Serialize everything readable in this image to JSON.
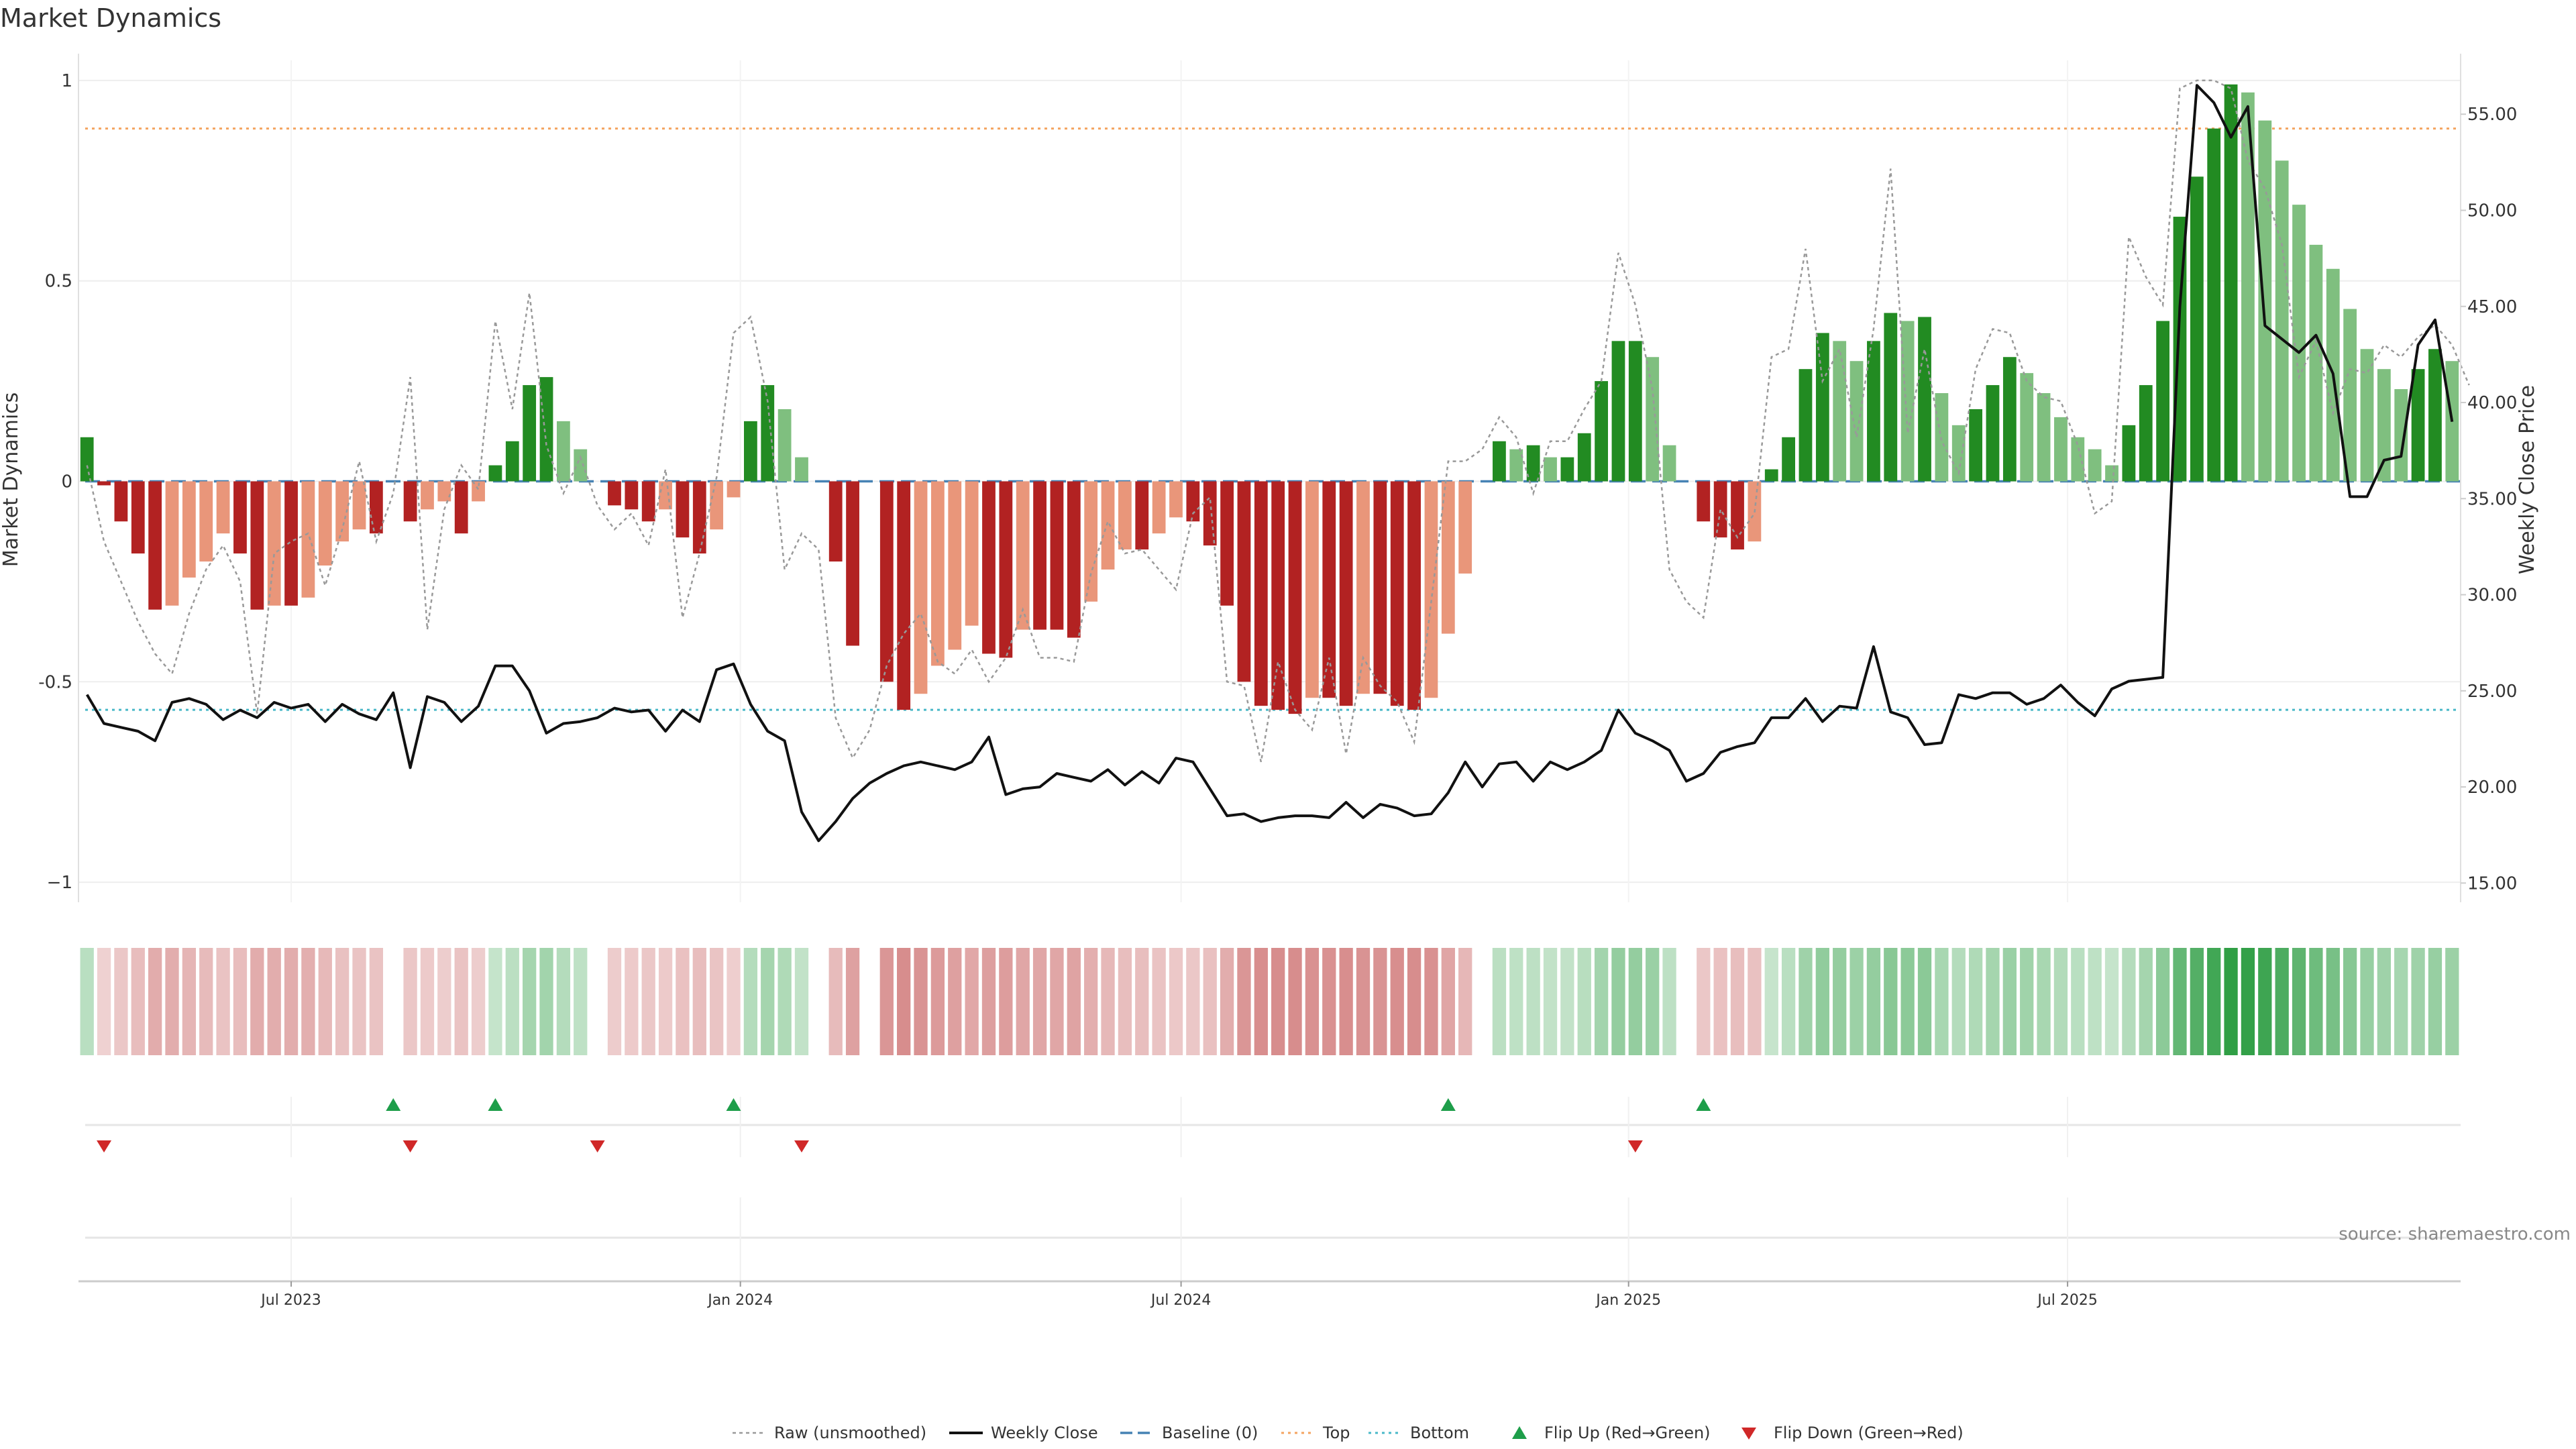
{
  "title": "Market Dynamics",
  "source_note": "source: sharemaestro.com",
  "colors": {
    "strong_green": "#228B22",
    "light_green": "#7FBF7F",
    "strong_red": "#B22222",
    "light_red": "#E9967A",
    "baseline": "#4682B4",
    "top": "#F4A460",
    "bottom": "#48B8C8",
    "raw": "#999999",
    "close": "#111111",
    "flip_up": "#1E9E4A",
    "flip_down": "#D02828"
  },
  "chart_data": {
    "type": "bar+line",
    "title": "Market Dynamics",
    "ylabel_left": "Market Dynamics",
    "ylabel_right": "Weekly Close Price",
    "ylim_left": [
      -1.05,
      1.05
    ],
    "ylim_right": [
      14,
      57.8
    ],
    "left_ticks": [
      "1",
      "0.5",
      "0",
      "-0.5",
      "−1"
    ],
    "left_tick_values": [
      1,
      0.5,
      0,
      -0.5,
      -1
    ],
    "right_ticks": [
      "55.00",
      "50.00",
      "45.00",
      "40.00",
      "35.00",
      "30.00",
      "25.00",
      "20.00",
      "15.00"
    ],
    "right_tick_values": [
      55,
      50,
      45,
      40,
      35,
      30,
      25,
      20,
      15
    ],
    "x_ticks": [
      "Jul 2023",
      "Jan 2024",
      "Jul 2024",
      "Jan 2025",
      "Jul 2025"
    ],
    "x_tick_weeks": [
      12,
      38.4,
      64.3,
      90.6,
      116.4
    ],
    "top_level": 0.88,
    "bottom_level": -0.57,
    "baseline_level": 0,
    "series": [
      {
        "name": "Market Dynamics (smoothed)",
        "values": [
          0.11,
          -0.01,
          -0.1,
          -0.18,
          -0.32,
          -0.31,
          -0.24,
          -0.2,
          -0.13,
          -0.18,
          -0.32,
          -0.31,
          -0.31,
          -0.29,
          -0.21,
          -0.15,
          -0.12,
          -0.13,
          0,
          -0.1,
          -0.07,
          -0.05,
          -0.13,
          -0.05,
          0.04,
          0.1,
          0.24,
          0.26,
          0.15,
          0.08,
          0,
          -0.06,
          -0.07,
          -0.1,
          -0.07,
          -0.14,
          -0.18,
          -0.12,
          -0.04,
          0.15,
          0.24,
          0.18,
          0.06,
          0,
          -0.2,
          -0.41,
          0,
          -0.5,
          -0.57,
          -0.53,
          -0.46,
          -0.42,
          -0.36,
          -0.43,
          -0.44,
          -0.37,
          -0.37,
          -0.37,
          -0.39,
          -0.3,
          -0.22,
          -0.17,
          -0.17,
          -0.13,
          -0.09,
          -0.1,
          -0.16,
          -0.31,
          -0.5,
          -0.56,
          -0.57,
          -0.58,
          -0.54,
          -0.54,
          -0.56,
          -0.53,
          -0.53,
          -0.56,
          -0.57,
          -0.54,
          -0.38,
          -0.23,
          0,
          0.1,
          0.08,
          0.09,
          0.06,
          0.06,
          0.12,
          0.25,
          0.35,
          0.35,
          0.31,
          0.09,
          0,
          -0.1,
          -0.14,
          -0.17,
          -0.15,
          0.03,
          0.11,
          0.28,
          0.37,
          0.35,
          0.3,
          0.35,
          0.42,
          0.4,
          0.41,
          0.22,
          0.14,
          0.18,
          0.24,
          0.31,
          0.27,
          0.22,
          0.16,
          0.11,
          0.08,
          0.04,
          0.14,
          0.24,
          0.4,
          0.66,
          0.76,
          0.88,
          0.99,
          0.97,
          0.9,
          0.8,
          0.69,
          0.59,
          0.53,
          0.43,
          0.33,
          0.28,
          0.23,
          0.28,
          0.33,
          0.3
        ]
      },
      {
        "name": "Raw (unsmoothed)",
        "values": [
          0.04,
          -0.15,
          -0.25,
          -0.35,
          -0.43,
          -0.48,
          -0.33,
          -0.22,
          -0.16,
          -0.25,
          -0.58,
          -0.18,
          -0.15,
          -0.13,
          -0.26,
          -0.12,
          0.05,
          -0.15,
          -0.03,
          0.26,
          -0.37,
          -0.07,
          0.04,
          -0.02,
          0.4,
          0.18,
          0.47,
          0.09,
          -0.03,
          0.06,
          -0.06,
          -0.12,
          -0.08,
          -0.16,
          0.03,
          -0.34,
          -0.18,
          0.01,
          0.37,
          0.41,
          0.2,
          -0.22,
          -0.13,
          -0.17,
          -0.59,
          -0.69,
          -0.62,
          -0.46,
          -0.38,
          -0.33,
          -0.45,
          -0.48,
          -0.42,
          -0.5,
          -0.44,
          -0.32,
          -0.44,
          -0.44,
          -0.45,
          -0.23,
          -0.1,
          -0.18,
          -0.17,
          -0.22,
          -0.27,
          -0.08,
          -0.04,
          -0.5,
          -0.51,
          -0.7,
          -0.45,
          -0.57,
          -0.62,
          -0.44,
          -0.68,
          -0.44,
          -0.51,
          -0.55,
          -0.65,
          -0.3,
          0.05,
          0.05,
          0.08,
          0.16,
          0.11,
          -0.03,
          0.1,
          0.1,
          0.18,
          0.25,
          0.57,
          0.44,
          0.23,
          -0.22,
          -0.3,
          -0.34,
          -0.07,
          -0.14,
          -0.08,
          0.31,
          0.33,
          0.58,
          0.25,
          0.33,
          0.11,
          0.38,
          0.78,
          0.12,
          0.33,
          0.1,
          0.02,
          0.28,
          0.38,
          0.37,
          0.25,
          0.21,
          0.2,
          0.09,
          -0.08,
          -0.05,
          0.61,
          0.51,
          0.44,
          0.98,
          1,
          1,
          0.98,
          0.8,
          0.73,
          0.59,
          0.26,
          0.35,
          0.17,
          0.28,
          0.27,
          0.34,
          0.31,
          0.36,
          0.39,
          0.34,
          0.24
        ]
      },
      {
        "name": "Weekly Close",
        "values": [
          24.8,
          23.3,
          23.1,
          22.9,
          22.4,
          24.4,
          24.6,
          24.3,
          23.5,
          24,
          23.6,
          24.4,
          24.1,
          24.3,
          23.4,
          24.3,
          23.8,
          23.5,
          24.9,
          21,
          24.7,
          24.4,
          23.4,
          24.2,
          26.3,
          26.3,
          25,
          22.8,
          23.3,
          23.4,
          23.6,
          24.1,
          23.9,
          24,
          22.9,
          24,
          23.4,
          26.1,
          26.4,
          24.3,
          22.9,
          22.4,
          18.7,
          17.2,
          18.2,
          19.4,
          20.2,
          20.7,
          21.1,
          21.3,
          21.1,
          20.9,
          21.3,
          22.6,
          19.6,
          19.9,
          20,
          20.7,
          20.5,
          20.3,
          20.9,
          20.1,
          20.8,
          20.2,
          21.5,
          21.3,
          19.9,
          18.5,
          18.6,
          18.2,
          18.4,
          18.5,
          18.5,
          18.4,
          19.2,
          18.4,
          19.1,
          18.9,
          18.5,
          18.6,
          19.7,
          21.3,
          20,
          21.2,
          21.3,
          20.3,
          21.3,
          20.9,
          21.3,
          21.9,
          24,
          22.8,
          22.4,
          21.9,
          20.3,
          20.7,
          21.8,
          22.1,
          22.3,
          23.6,
          23.6,
          24.6,
          23.4,
          24.2,
          24.1,
          27.3,
          23.9,
          23.6,
          22.2,
          22.3,
          24.8,
          24.6,
          24.9,
          24.9,
          24.3,
          24.6,
          25.3,
          24.4,
          23.7,
          25.1,
          25.5,
          25.6,
          25.7,
          45,
          56.5,
          55.6,
          53.8,
          55.4,
          44,
          43.3,
          42.6,
          43.5,
          41.5,
          35.1,
          35.1,
          37,
          37.2,
          43,
          44.3,
          39
        ]
      },
      {
        "name": "Flip Up (Red→Green)",
        "weeks": [
          18,
          24,
          38,
          80,
          95
        ]
      },
      {
        "name": "Flip Down (Green→Red)",
        "weeks": [
          1,
          19,
          30,
          42,
          91
        ]
      }
    ]
  },
  "legend": [
    {
      "label": "Raw (unsmoothed)",
      "kind": "dotted-gray"
    },
    {
      "label": "Weekly Close",
      "kind": "solid-black"
    },
    {
      "label": "Baseline (0)",
      "kind": "dashed-blue"
    },
    {
      "label": "Top",
      "kind": "dotted-orange"
    },
    {
      "label": "Bottom",
      "kind": "dotted-cyan"
    },
    {
      "label": "Flip Up (Red→Green)",
      "kind": "triangle-up-green"
    },
    {
      "label": "Flip Down (Green→Red)",
      "kind": "triangle-down-red"
    }
  ]
}
